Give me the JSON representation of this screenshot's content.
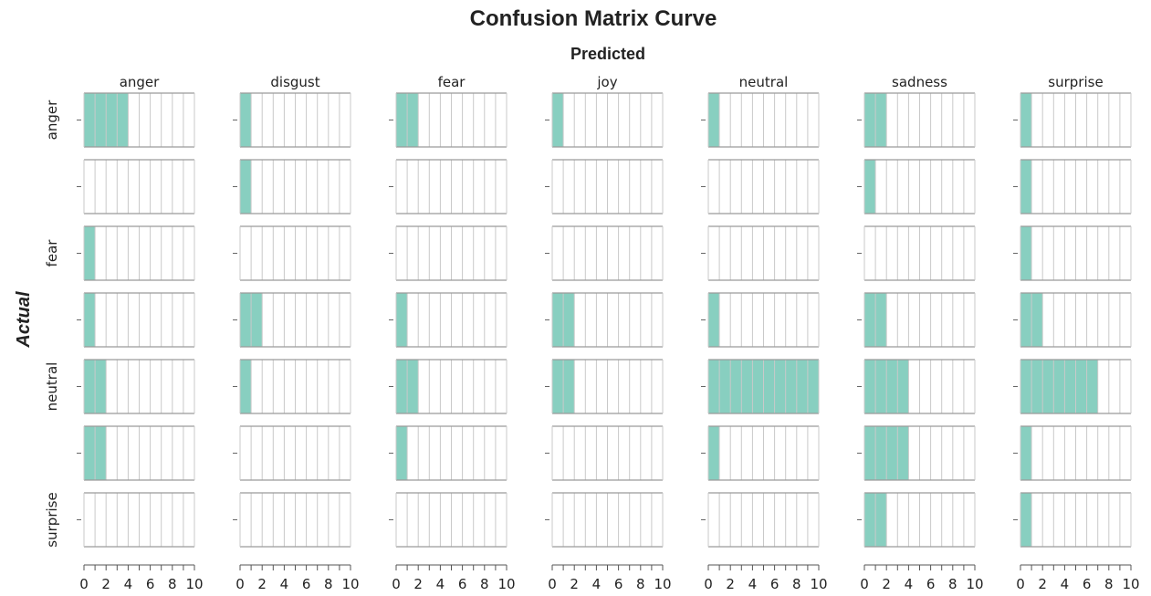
{
  "chart_data": {
    "type": "bar",
    "title": "Confusion Matrix Curve",
    "subtitle": "Predicted",
    "ylabel": "Actual",
    "columns": [
      "anger",
      "disgust",
      "fear",
      "joy",
      "neutral",
      "sadness",
      "surprise"
    ],
    "row_labels": [
      "anger",
      "",
      "fear",
      "",
      "neutral",
      "",
      "surprise"
    ],
    "xlim": [
      0,
      10
    ],
    "xticks": [
      "0",
      "2",
      "4",
      "6",
      "8",
      "10"
    ],
    "grid": true,
    "bar_color": "#88cfc0",
    "values": [
      [
        4,
        1,
        2,
        1,
        1,
        2,
        1
      ],
      [
        0,
        1,
        0,
        0,
        0,
        1,
        1
      ],
      [
        1,
        0,
        0,
        0,
        0,
        0,
        1
      ],
      [
        1,
        2,
        1,
        2,
        1,
        2,
        2
      ],
      [
        2,
        1,
        2,
        2,
        10,
        4,
        7
      ],
      [
        2,
        0,
        1,
        0,
        1,
        4,
        1
      ],
      [
        0,
        0,
        0,
        0,
        0,
        2,
        1
      ]
    ]
  }
}
